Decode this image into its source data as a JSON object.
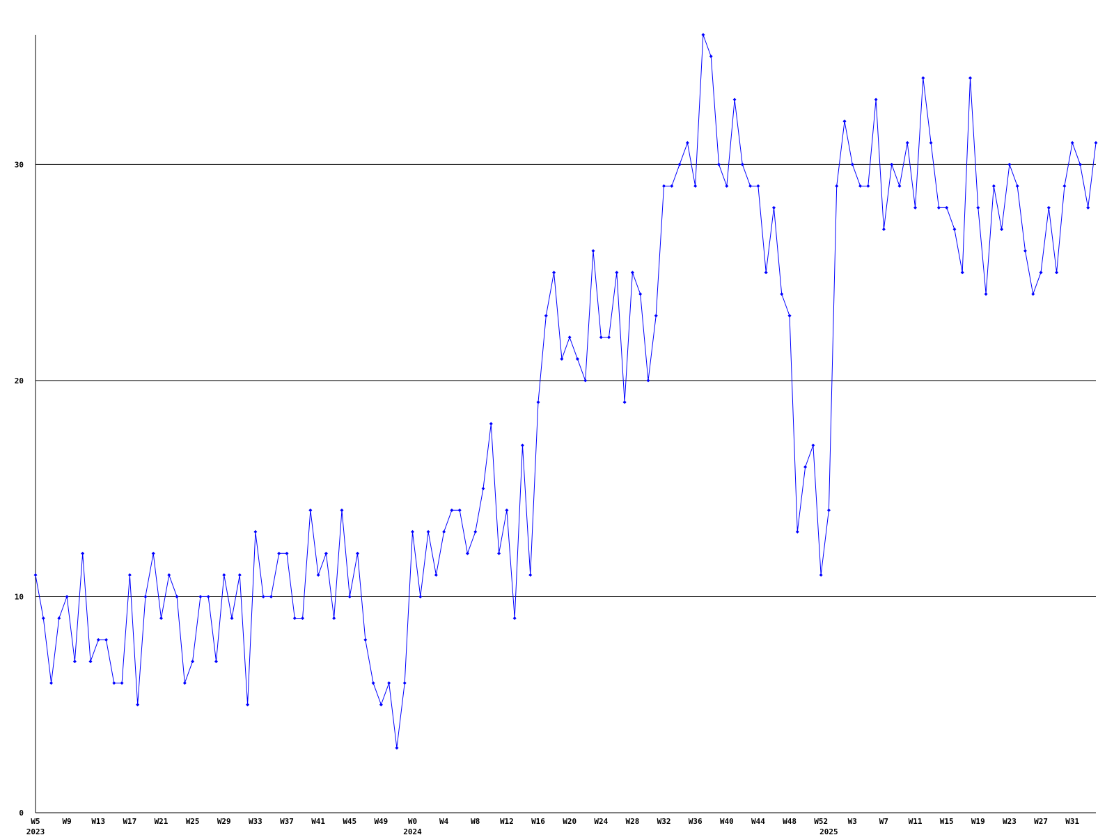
{
  "chart_data": {
    "type": "line",
    "categories": [
      "W5",
      null,
      null,
      null,
      "W9",
      null,
      null,
      null,
      "W13",
      null,
      null,
      null,
      "W17",
      null,
      null,
      null,
      "W21",
      null,
      null,
      null,
      "W25",
      null,
      null,
      null,
      "W29",
      null,
      null,
      null,
      "W33",
      null,
      null,
      null,
      "W37",
      null,
      null,
      null,
      "W41",
      null,
      null,
      null,
      "W45",
      null,
      null,
      null,
      "W49",
      null,
      null,
      null,
      "W0",
      null,
      null,
      null,
      "W4",
      null,
      null,
      null,
      "W8",
      null,
      null,
      null,
      "W12",
      null,
      null,
      null,
      "W16",
      null,
      null,
      null,
      "W20",
      null,
      null,
      null,
      "W24",
      null,
      null,
      null,
      "W28",
      null,
      null,
      null,
      "W32",
      null,
      null,
      null,
      "W36",
      null,
      null,
      null,
      "W40",
      null,
      null,
      null,
      "W44",
      null,
      null,
      null,
      "W48",
      null,
      null,
      null,
      "W52",
      null,
      null,
      null,
      "W3",
      null,
      null,
      null,
      "W7",
      null,
      null,
      null,
      "W11",
      null,
      null,
      null,
      "W15",
      null,
      null,
      null,
      "W19",
      null,
      null,
      null,
      "W23",
      null,
      null,
      null,
      "W27",
      null,
      null,
      null,
      "W31",
      null,
      null,
      null
    ],
    "x_years": [
      "2023",
      null,
      null,
      null,
      null,
      null,
      null,
      null,
      null,
      null,
      null,
      null,
      null,
      null,
      null,
      null,
      null,
      null,
      null,
      null,
      null,
      null,
      null,
      null,
      null,
      null,
      null,
      null,
      null,
      null,
      null,
      null,
      null,
      null,
      null,
      null,
      null,
      null,
      null,
      null,
      null,
      null,
      null,
      null,
      null,
      null,
      null,
      null,
      "2024",
      null,
      null,
      null,
      null,
      null,
      null,
      null,
      null,
      null,
      null,
      null,
      null,
      null,
      null,
      null,
      null,
      null,
      null,
      null,
      null,
      null,
      null,
      null,
      null,
      null,
      null,
      null,
      null,
      null,
      null,
      null,
      null,
      null,
      null,
      null,
      null,
      null,
      null,
      null,
      null,
      null,
      null,
      null,
      null,
      null,
      null,
      null,
      null,
      null,
      null,
      null,
      null,
      "2025",
      null,
      null,
      null,
      null,
      null,
      null,
      null,
      null,
      null,
      null,
      null,
      null,
      null,
      null,
      null,
      null,
      null,
      null,
      null,
      null,
      null,
      null,
      null,
      null,
      null,
      null,
      null,
      null,
      null,
      null,
      null,
      null,
      null,
      null
    ],
    "series": [
      {
        "color": "#0000ff",
        "values": [
          11,
          9,
          6,
          9,
          10,
          7,
          12,
          7,
          8,
          8,
          6,
          6,
          11,
          5,
          10,
          12,
          9,
          11,
          10,
          6,
          7,
          10,
          10,
          7,
          11,
          9,
          11,
          5,
          13,
          10,
          10,
          12,
          12,
          9,
          9,
          14,
          11,
          12,
          9,
          14,
          10,
          12,
          8,
          6,
          5,
          6,
          3,
          6,
          13,
          10,
          13,
          11,
          13,
          14,
          14,
          12,
          13,
          15,
          18,
          12,
          14,
          9,
          17,
          11,
          19,
          23,
          25,
          21,
          22,
          21,
          20,
          26,
          22,
          22,
          25,
          19,
          25,
          24,
          20,
          23,
          29,
          29,
          30,
          31,
          29,
          36,
          35,
          30,
          29,
          33,
          30,
          29,
          29,
          25,
          28,
          24,
          23,
          13,
          16,
          17,
          11,
          14,
          29,
          32,
          30,
          29,
          29,
          33,
          27,
          30,
          29,
          31,
          28,
          34,
          31,
          28,
          28,
          27,
          25,
          34,
          28,
          24,
          29,
          27,
          30,
          29,
          26,
          24,
          25,
          28,
          25,
          29,
          31,
          30,
          28,
          31
        ]
      }
    ],
    "ylim": [
      0,
      36
    ],
    "yticks": [
      0,
      10,
      20,
      30
    ],
    "grid": true
  }
}
